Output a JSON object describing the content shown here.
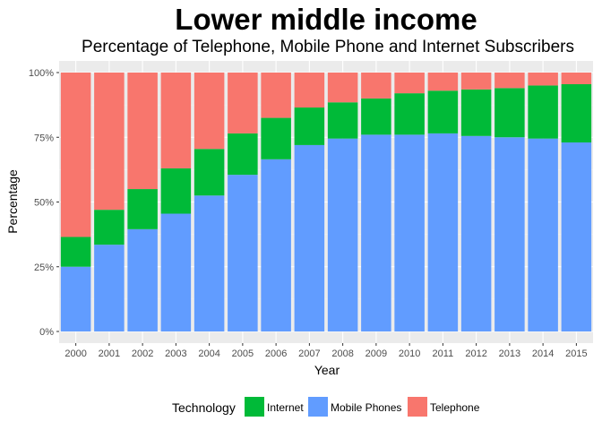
{
  "chart_data": {
    "type": "bar",
    "stacked": true,
    "title": "Lower middle income",
    "subtitle": "Percentage of Telephone, Mobile Phone and Internet Subscribers",
    "xlabel": "Year",
    "ylabel": "Percentage",
    "ylim": [
      0,
      1
    ],
    "yticks": [
      0,
      0.25,
      0.5,
      0.75,
      1.0
    ],
    "ytick_labels": [
      "0%",
      "25%",
      "50%",
      "75%",
      "100%"
    ],
    "grid": true,
    "legend_position": "bottom",
    "legend_title": "Technology",
    "categories": [
      "2000",
      "2001",
      "2002",
      "2003",
      "2004",
      "2005",
      "2006",
      "2007",
      "2008",
      "2009",
      "2010",
      "2011",
      "2012",
      "2013",
      "2014",
      "2015"
    ],
    "series": [
      {
        "name": "Mobile Phones",
        "color": "#619CFF",
        "values": [
          0.25,
          0.335,
          0.395,
          0.455,
          0.525,
          0.605,
          0.665,
          0.72,
          0.745,
          0.76,
          0.76,
          0.765,
          0.755,
          0.75,
          0.745,
          0.73
        ]
      },
      {
        "name": "Internet",
        "color": "#00BA38",
        "values": [
          0.115,
          0.135,
          0.155,
          0.175,
          0.18,
          0.16,
          0.16,
          0.145,
          0.14,
          0.14,
          0.16,
          0.165,
          0.18,
          0.19,
          0.205,
          0.225
        ]
      },
      {
        "name": "Telephone",
        "color": "#F8766D",
        "values": [
          0.635,
          0.53,
          0.45,
          0.37,
          0.295,
          0.235,
          0.175,
          0.135,
          0.115,
          0.1,
          0.08,
          0.07,
          0.065,
          0.06,
          0.05,
          0.045
        ]
      }
    ],
    "legend_order": [
      "Internet",
      "Mobile Phones",
      "Telephone"
    ]
  },
  "colors": {
    "panel_background": "#EBEBEB",
    "grid_major": "#FFFFFF",
    "grid_minor": "#F5F5F5",
    "tick_text": "#4D4D4D"
  }
}
